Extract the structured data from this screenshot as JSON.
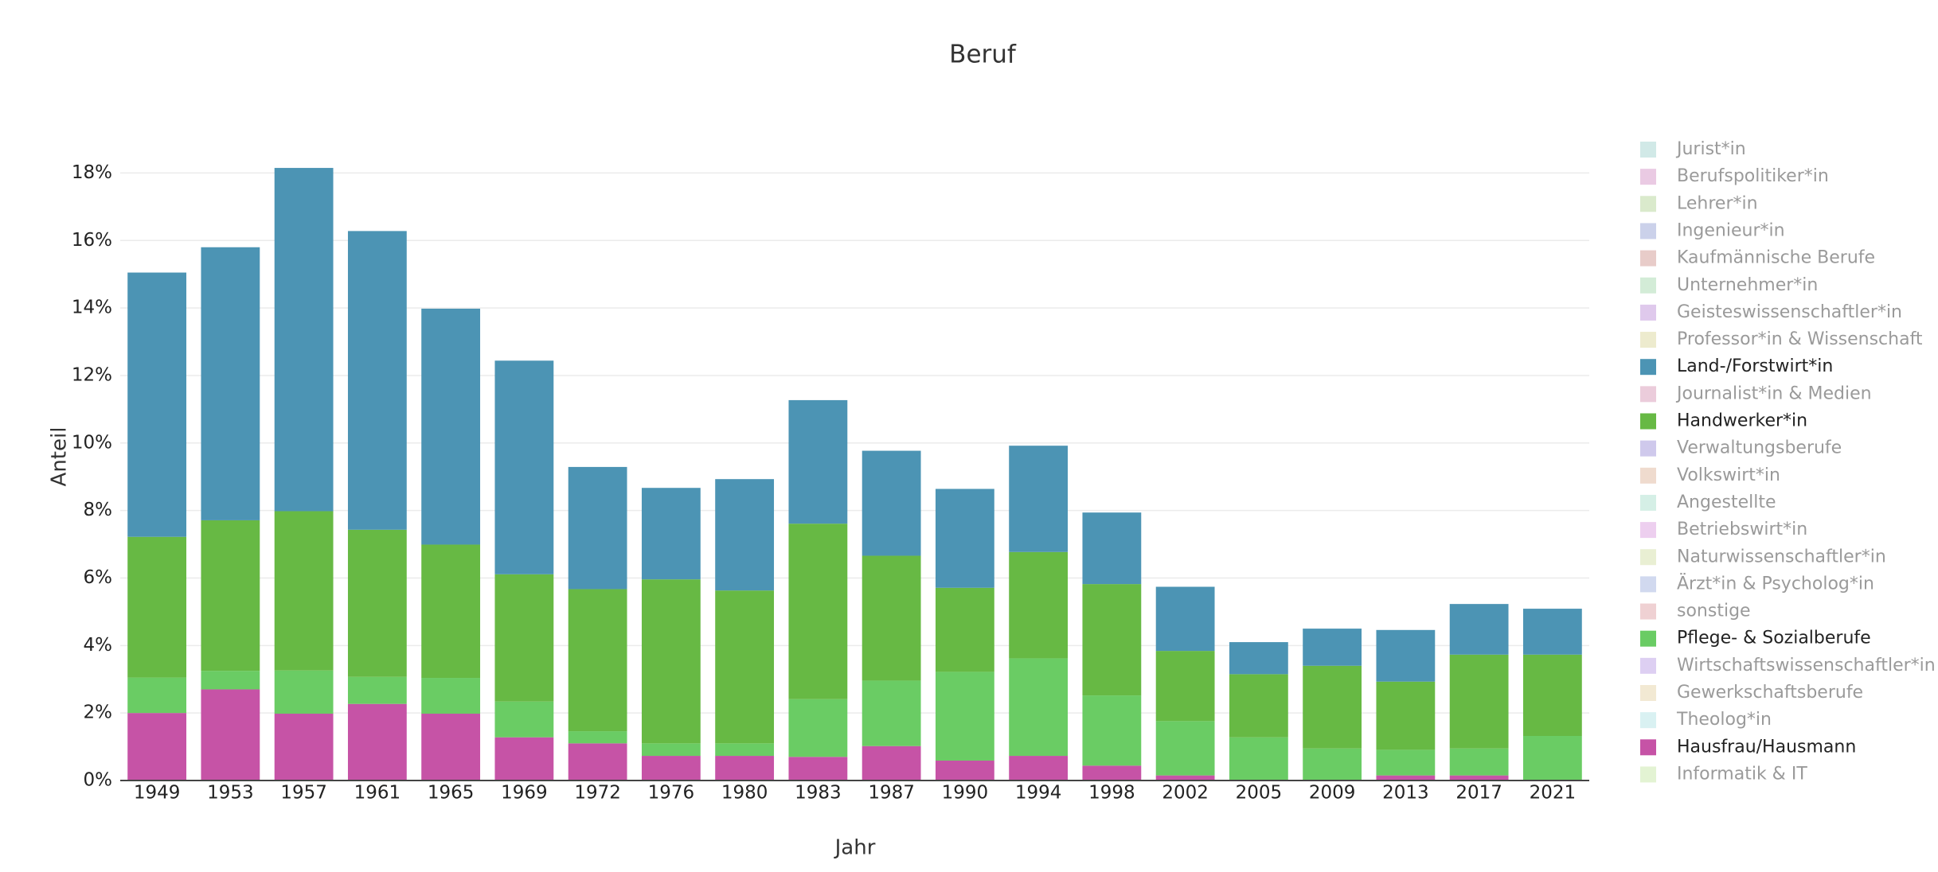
{
  "chart_data": {
    "type": "stacked_bar",
    "title": "Beruf",
    "x_label": "Jahr",
    "y_label": "Anteil",
    "categories": [
      "1949",
      "1953",
      "1957",
      "1961",
      "1965",
      "1969",
      "1972",
      "1976",
      "1980",
      "1983",
      "1987",
      "1990",
      "1994",
      "1998",
      "2002",
      "2005",
      "2009",
      "2013",
      "2017",
      "2021"
    ],
    "ylim": [
      0,
      19
    ],
    "yticks": [
      {
        "value": 0,
        "label": "0%"
      },
      {
        "value": 2,
        "label": "2%"
      },
      {
        "value": 4,
        "label": "4%"
      },
      {
        "value": 6,
        "label": "6%"
      },
      {
        "value": 8,
        "label": "8%"
      },
      {
        "value": 10,
        "label": "10%"
      },
      {
        "value": 12,
        "label": "12%"
      },
      {
        "value": 14,
        "label": "14%"
      },
      {
        "value": 16,
        "label": "16%"
      },
      {
        "value": 18,
        "label": "18%"
      }
    ],
    "grid": true,
    "series": [
      {
        "name": "Jurist*in",
        "color": "#a3d4cf",
        "visible": false
      },
      {
        "name": "Berufspolitiker*in",
        "color": "#d596c8",
        "visible": false
      },
      {
        "name": "Lehrer*in",
        "color": "#b5d69a",
        "visible": false
      },
      {
        "name": "Ingenieur*in",
        "color": "#97a3d6",
        "visible": false
      },
      {
        "name": "Kaufmännische Berufe",
        "color": "#d29a94",
        "visible": false
      },
      {
        "name": "Unternehmer*in",
        "color": "#a8d9b0",
        "visible": false
      },
      {
        "name": "Geisteswissenschaftler*in",
        "color": "#bf93d9",
        "visible": false
      },
      {
        "name": "Professor*in & Wissenschaft",
        "color": "#dcd79d",
        "visible": false
      },
      {
        "name": "Land-/Forstwirt*in",
        "color": "#4c94b4",
        "visible": true,
        "values": [
          7.83,
          8.09,
          10.17,
          8.85,
          6.99,
          6.33,
          3.62,
          2.71,
          3.3,
          3.66,
          3.11,
          2.93,
          3.15,
          2.12,
          1.9,
          0.95,
          1.1,
          1.53,
          1.5,
          1.36
        ]
      },
      {
        "name": "Journalist*in & Medien",
        "color": "#d899b8",
        "visible": false
      },
      {
        "name": "Handwerker*in",
        "color": "#67b944",
        "visible": true,
        "values": [
          4.17,
          4.46,
          4.72,
          4.36,
          3.95,
          3.77,
          4.21,
          4.86,
          4.53,
          5.2,
          3.7,
          2.49,
          3.15,
          3.3,
          2.08,
          1.87,
          2.45,
          2.02,
          2.78,
          2.41
        ]
      },
      {
        "name": "Verwaltungsberufe",
        "color": "#a093d9",
        "visible": false
      },
      {
        "name": "Volkswirt*in",
        "color": "#e0b79e",
        "visible": false
      },
      {
        "name": "Angestellte",
        "color": "#ace0ce",
        "visible": false
      },
      {
        "name": "Betriebswirt*in",
        "color": "#dc9fe0",
        "visible": false
      },
      {
        "name": "Naturwissenschaftler*in",
        "color": "#d3e0a8",
        "visible": false
      },
      {
        "name": "Ärzt*in & Psycholog*in",
        "color": "#a3b4e0",
        "visible": false
      },
      {
        "name": "sonstige",
        "color": "#e0a4a8",
        "visible": false
      },
      {
        "name": "Pflege- & Sozialberufe",
        "color": "#6acc64",
        "visible": true,
        "values": [
          1.05,
          0.55,
          1.28,
          0.8,
          1.06,
          1.06,
          0.36,
          0.37,
          0.37,
          1.71,
          1.94,
          2.63,
          2.89,
          2.08,
          1.61,
          1.28,
          0.95,
          0.76,
          0.8,
          1.32
        ]
      },
      {
        "name": "Wirtschaftswissenschaftler*in",
        "color": "#bc9fe6",
        "visible": false
      },
      {
        "name": "Gewerkschaftsberufe",
        "color": "#e6d4a8",
        "visible": false
      },
      {
        "name": "Theolog*in",
        "color": "#b3e3e6",
        "visible": false
      },
      {
        "name": "Hausfrau/Hausmann",
        "color": "#c653a6",
        "visible": true,
        "values": [
          2.0,
          2.7,
          1.98,
          2.27,
          1.98,
          1.28,
          1.1,
          0.73,
          0.73,
          0.7,
          1.02,
          0.59,
          0.73,
          0.44,
          0.15,
          0,
          0,
          0.15,
          0.15,
          0
        ]
      },
      {
        "name": "Informatik & IT",
        "color": "#c8e8a8",
        "visible": false
      }
    ]
  }
}
